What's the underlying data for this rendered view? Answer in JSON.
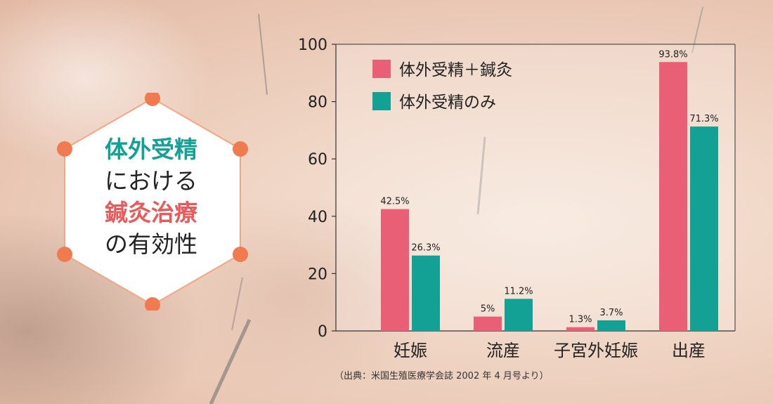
{
  "badge": {
    "line1": "体外受精",
    "line2": "における",
    "line3": "鍼灸治療",
    "line4": "の有効性"
  },
  "colors": {
    "series1": "#e85f76",
    "series2": "#14a195",
    "badge_accent": "#f07b50",
    "badge_green": "#14a195",
    "badge_red": "#e95b5b"
  },
  "source": "（出典：米国生殖医療学会誌 2002 年 4 月号より）",
  "chart_data": {
    "type": "bar",
    "categories": [
      "妊娠",
      "流産",
      "子宮外妊娠",
      "出産"
    ],
    "series": [
      {
        "name": "体外受精＋鍼灸",
        "values": [
          42.5,
          5,
          1.3,
          93.8
        ],
        "labels": [
          "42.5%",
          "5%",
          "1.3%",
          "93.8%"
        ]
      },
      {
        "name": "体外受精のみ",
        "values": [
          26.3,
          11.2,
          3.7,
          71.3
        ],
        "labels": [
          "26.3%",
          "11.2%",
          "3.7%",
          "71.3%"
        ]
      }
    ],
    "ylim": [
      0,
      100
    ],
    "yticks": [
      "0",
      "20",
      "40",
      "60",
      "80",
      "100"
    ],
    "legend_position": "top-left",
    "grid": false
  }
}
